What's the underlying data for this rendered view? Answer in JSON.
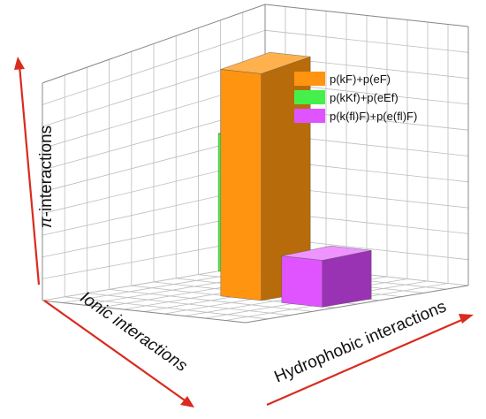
{
  "chart_data": {
    "type": "bar3d",
    "axes": {
      "x_label": "Hydrophobic interactions",
      "y_label": "Ionic interactions",
      "z_label_prefix": "π",
      "z_label_rest": "-interactions"
    },
    "grid": true,
    "legend_position": "top-right",
    "series": [
      {
        "name": "p(kF)+p(eF)",
        "color": "#ff9410",
        "side_color": "#b86b0b",
        "top_color": "#ffb14d",
        "hydrophobic": 0.55,
        "ionic": 0.5,
        "pi": 0.97
      },
      {
        "name": "p(kKf)+p(eEf)",
        "color": "#45f04a",
        "side_color": "#2a9e2e",
        "top_color": "#8af78d",
        "hydrophobic": 0.1,
        "ionic": 0.1,
        "pi": 0.55
      },
      {
        "name": "p(k(fl)F)+p(e(fl)F)",
        "color": "#e054ff",
        "side_color": "#9a33b3",
        "top_color": "#ee93ff",
        "hydrophobic": 0.85,
        "ionic": 0.5,
        "pi": 0.2
      }
    ]
  }
}
